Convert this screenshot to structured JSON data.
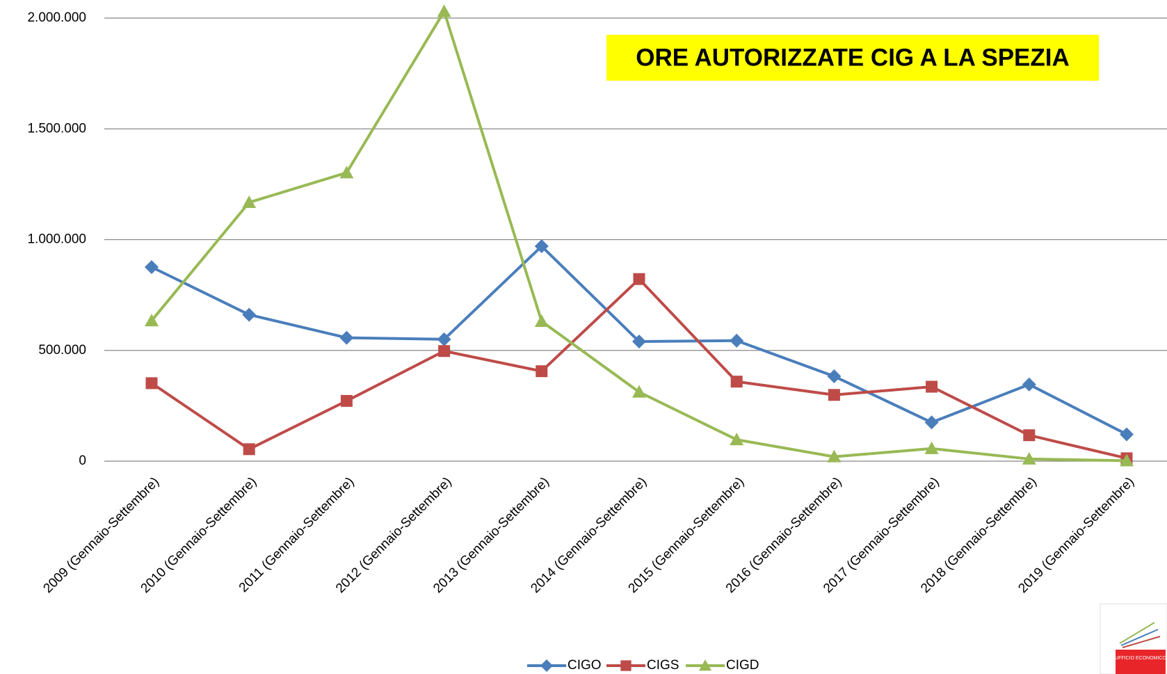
{
  "chart_data": {
    "type": "line",
    "title": "ORE AUTORIZZATE CIG A LA SPEZIA",
    "categories": [
      "2009 (Gennaio-Settembre)",
      "2010 (Gennaio-Settembre)",
      "2011 (Gennaio-Settembre)",
      "2012 (Gennaio-Settembre)",
      "2013 (Gennaio-Settembre)",
      "2014 (Gennaio-Settembre)",
      "2015 (Gennaio-Settembre)",
      "2016 (Gennaio-Settembre)",
      "2017 (Gennaio-Settembre)",
      "2018 (Gennaio-Settembre)",
      "2019 (Gennaio-Settembre)"
    ],
    "series": [
      {
        "name": "CIGO",
        "color": "#4a7ebb",
        "marker": "diamond",
        "values": [
          876000,
          661000,
          557000,
          550000,
          970000,
          540000,
          544000,
          383000,
          175000,
          346000,
          121000
        ]
      },
      {
        "name": "CIGS",
        "color": "#be4b48",
        "marker": "square",
        "values": [
          352000,
          54000,
          272000,
          497000,
          406000,
          822000,
          359000,
          299000,
          336000,
          117000,
          13000
        ]
      },
      {
        "name": "CIGD",
        "color": "#98b954",
        "marker": "triangle",
        "values": [
          634000,
          1168000,
          1302000,
          2030000,
          631000,
          312000,
          97000,
          20000,
          57000,
          10000,
          2000
        ]
      }
    ],
    "ylim": [
      0,
      2000000
    ],
    "yticks": [
      0,
      {
        "value": 500000,
        "label": "500.000"
      },
      {
        "value": 1000000,
        "label": "1.000.000"
      },
      {
        "value": 1500000,
        "label": "1.500.000"
      },
      {
        "value": 2000000,
        "label": "2.000.000"
      }
    ],
    "grid": true,
    "legend": "bottom"
  },
  "logo": "UFFICIO ECONOMICO"
}
